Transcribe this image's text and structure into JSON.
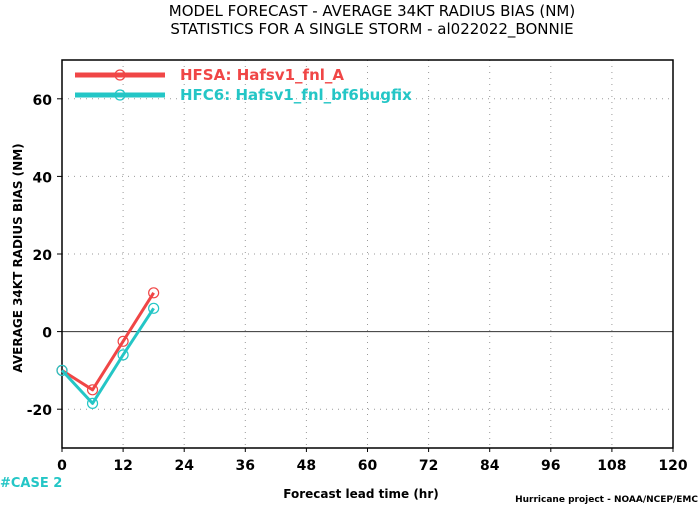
{
  "chart_data": {
    "type": "line",
    "title": "MODEL FORECAST - AVERAGE 34KT RADIUS BIAS (NM)",
    "subtitle": "STATISTICS FOR A SINGLE STORM - al022022_BONNIE",
    "xlabel": "Forecast lead time (hr)",
    "ylabel": "AVERAGE 34KT RADIUS BIAS (NM)",
    "xlim": [
      0,
      120
    ],
    "ylim": [
      -30,
      70
    ],
    "xticks": [
      0,
      12,
      24,
      36,
      48,
      60,
      72,
      84,
      96,
      108,
      120
    ],
    "yticks": [
      -20,
      0,
      20,
      40,
      60
    ],
    "grid": true,
    "legend_position": "top-left",
    "zero_line": true,
    "series": [
      {
        "name": "HFSA: Hafsv1_fnl_A",
        "color": "#f04646",
        "x": [
          0,
          6,
          12,
          18
        ],
        "y": [
          -10,
          -15,
          -2.5,
          10
        ]
      },
      {
        "name": "HFC6: Hafsv1_fnl_bf6bugfix",
        "color": "#24c6c6",
        "x": [
          0,
          6,
          12,
          18
        ],
        "y": [
          -10,
          -18.5,
          -6,
          6
        ]
      }
    ],
    "annotations": {
      "case_label": "#CASE 2",
      "credit": "Hurricane project - NOAA/NCEP/EMC"
    }
  }
}
